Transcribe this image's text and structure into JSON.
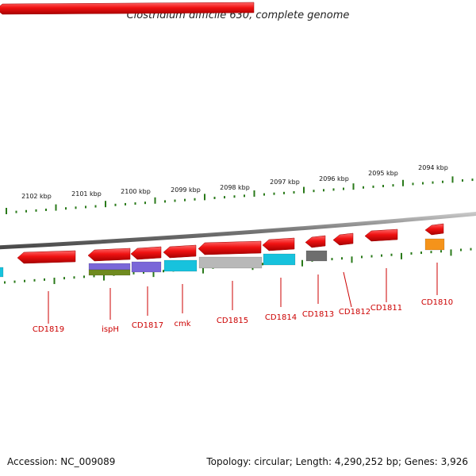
{
  "title": "Clostridium difficile 630, complete genome",
  "ruler_labels": [
    "2102 kbp",
    "2101 kbp",
    "2100 kbp",
    "2099 kbp",
    "2098 kbp",
    "2097 kbp",
    "2096 kbp",
    "2095 kbp",
    "2094 kbp"
  ],
  "gene_labels": [
    "CD1819",
    "ispH",
    "CD1817",
    "cmk",
    "CD1815",
    "CD1814",
    "CD1813",
    "CD1812",
    "CD1811",
    "CD1810"
  ],
  "footer": {
    "accession": "Accession: NC_009089",
    "topology": "Topology: circular; Length: 4,290,252 bp; Genes: 3,926"
  },
  "colors": {
    "gene_arrow": "#ee1111",
    "backbone": "#888888",
    "tick": "#2a7a1a",
    "label": "#cc0000",
    "cog_purple": "#7a67d8",
    "cog_cyan": "#17c2dd",
    "cog_gray": "#b8b8b8",
    "cog_darkgray": "#6e6e6e",
    "cog_orange": "#f5931a",
    "cog_olive": "#6f8a1f"
  }
}
